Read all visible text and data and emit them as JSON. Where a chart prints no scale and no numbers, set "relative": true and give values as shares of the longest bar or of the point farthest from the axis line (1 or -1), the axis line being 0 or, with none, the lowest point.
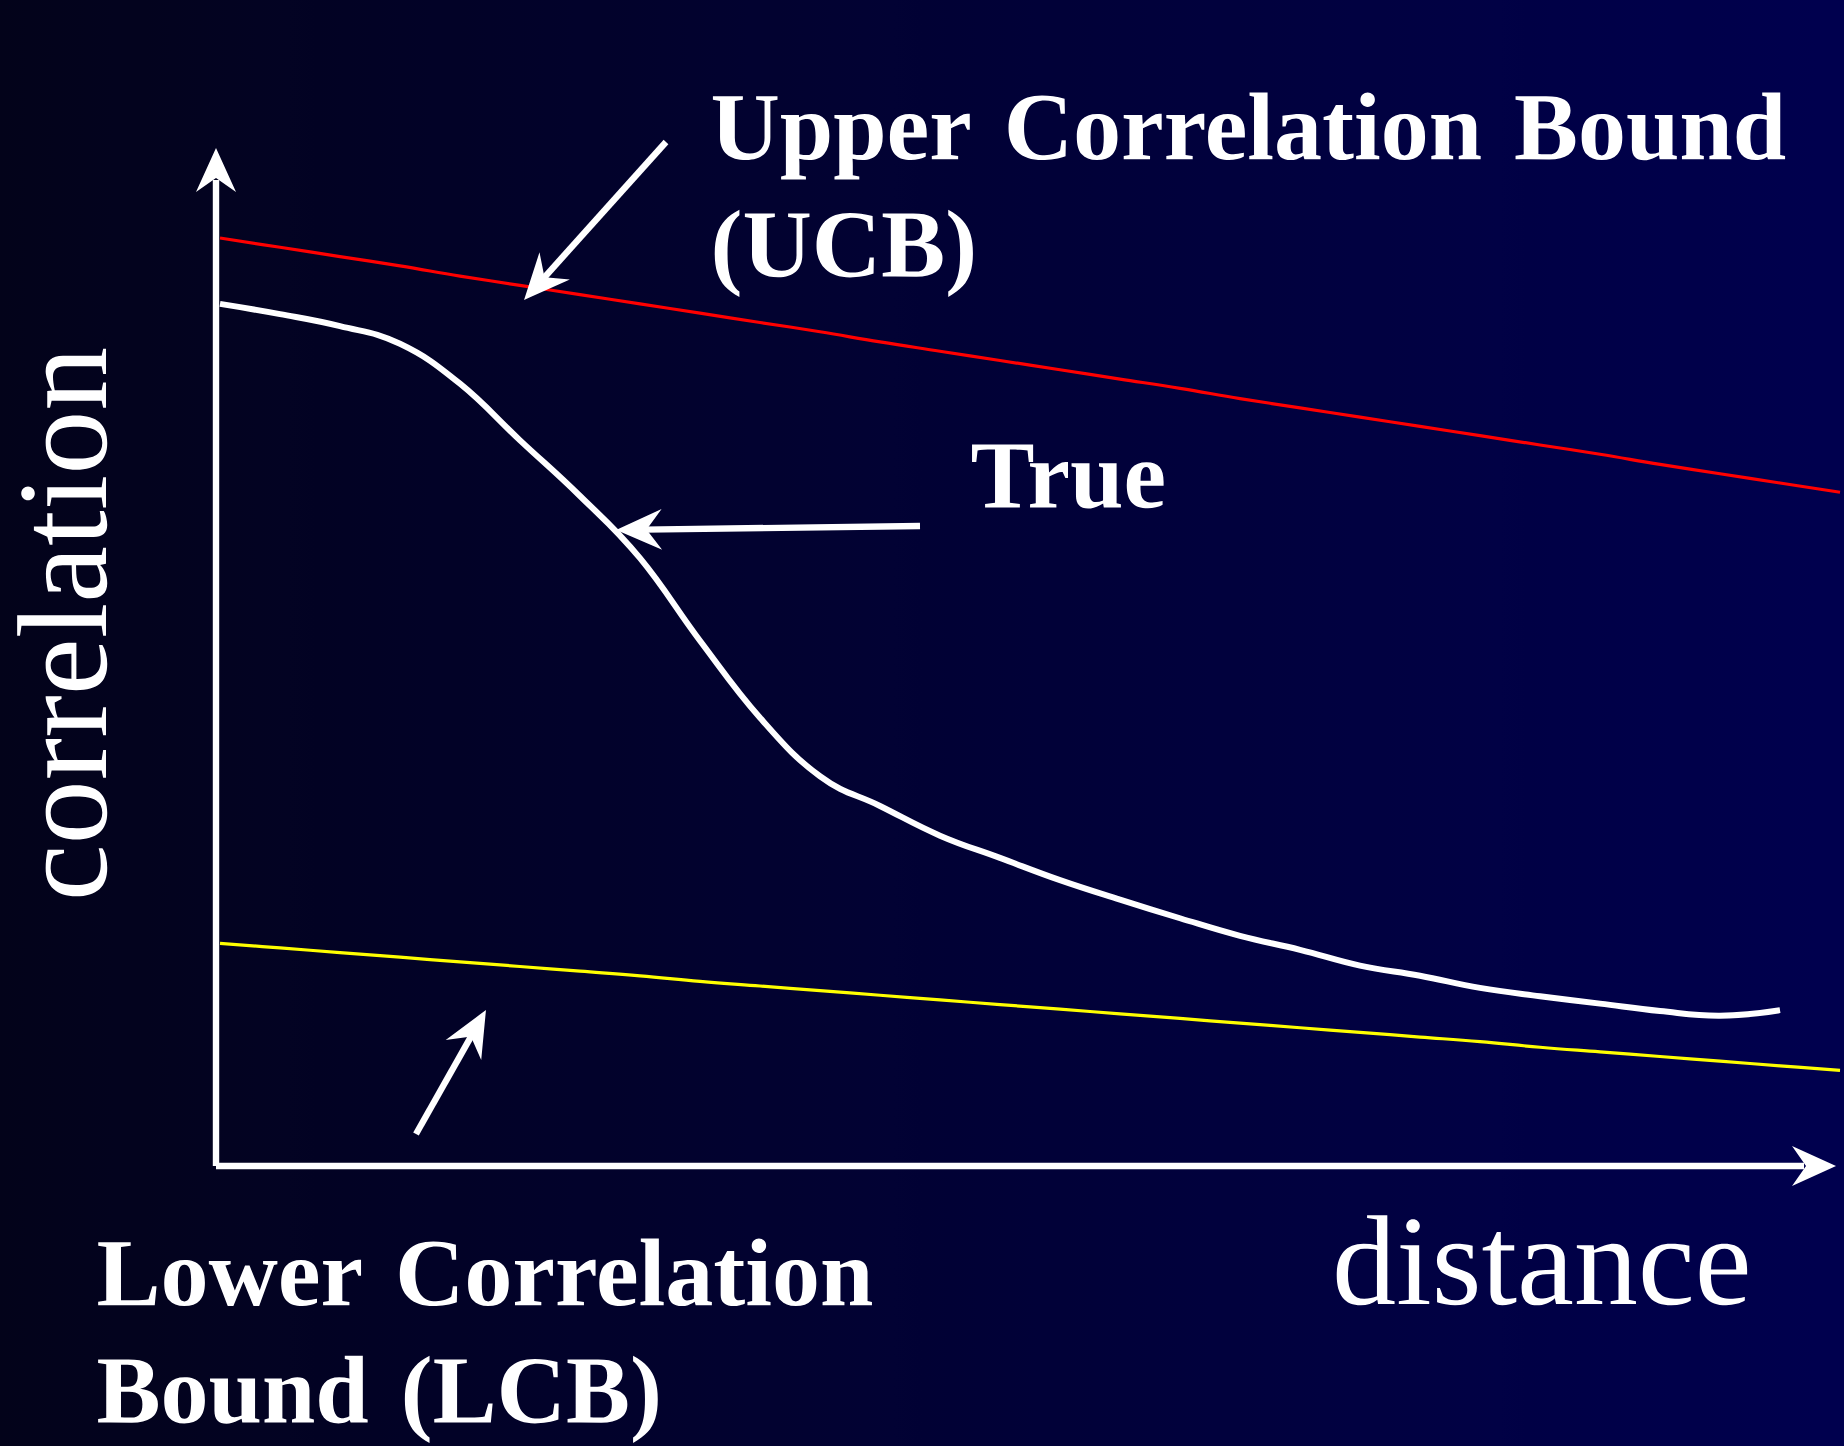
{
  "chart_data": {
    "type": "line",
    "xlabel": "distance",
    "ylabel": "correlation",
    "relative": true,
    "marker": "none",
    "categories": [
      null,
      null,
      null,
      null,
      null,
      null,
      null,
      null,
      null,
      null,
      null,
      null,
      null,
      null,
      null,
      null,
      null,
      null,
      null,
      null,
      null,
      null,
      null,
      null,
      null,
      null,
      null,
      null
    ],
    "series": [
      {
        "color": "#ff0000",
        "values": [
          1.0,
          0.99,
          0.98,
          0.97,
          0.959,
          0.949,
          0.939,
          0.929,
          0.919,
          0.909,
          0.899,
          0.888,
          0.878,
          0.868,
          0.858,
          0.848,
          0.838,
          0.827,
          0.817,
          0.807,
          0.797,
          0.787,
          0.777,
          0.767,
          0.756,
          0.746,
          0.736,
          0.726
        ]
      },
      {
        "color": "#ffffff",
        "values": [
          0.929,
          0.918,
          0.905,
          0.886,
          0.843,
          0.782,
          0.722,
          0.655,
          0.566,
          0.483,
          0.42,
          0.388,
          0.356,
          0.332,
          0.308,
          0.287,
          0.267,
          0.248,
          0.233,
          0.216,
          0.205,
          0.192,
          0.183,
          0.175,
          0.167,
          0.162,
          0.168,
          null
        ]
      },
      {
        "color": "#ffff00",
        "values": [
          0.24,
          0.235,
          0.23,
          0.225,
          0.22,
          0.215,
          0.21,
          0.205,
          0.199,
          0.194,
          0.189,
          0.184,
          0.179,
          0.174,
          0.169,
          0.164,
          0.159,
          0.154,
          0.149,
          0.144,
          0.139,
          0.134,
          0.128,
          0.123,
          0.118,
          0.113,
          0.108,
          0.103
        ]
      }
    ],
    "annotations": [
      "Upper Correlation Bound (UCB)",
      "True",
      "Lower Correlation Bound (LCB)"
    ]
  }
}
